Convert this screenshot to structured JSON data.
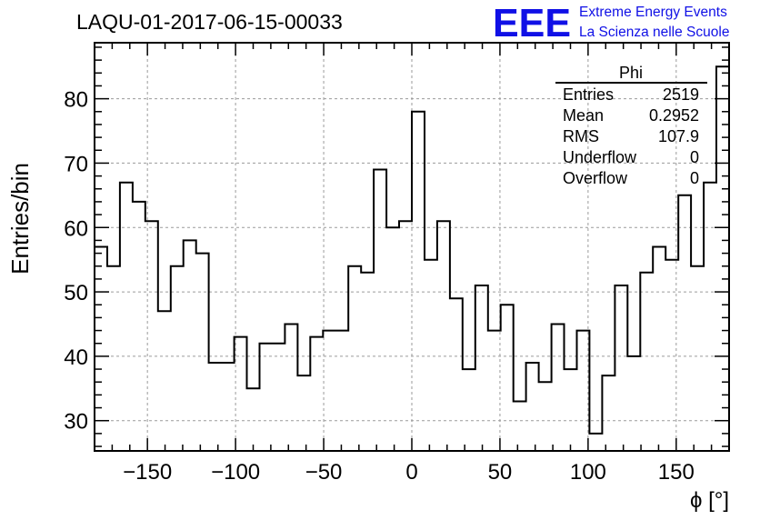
{
  "header": {
    "run_id": "LAQU-01-2017-06-15-00033",
    "logo_text": "EEE",
    "logo_line1": "Extreme Energy Events",
    "logo_line2": "La Scienza nelle Scuole"
  },
  "colors": {
    "logo": "#1010e6",
    "histogram": "#000000",
    "grid": "#9a9a9a"
  },
  "stats_box": {
    "title": "Phi",
    "rows": [
      {
        "label": "Entries",
        "value": "2519"
      },
      {
        "label": "Mean",
        "value": "0.2952"
      },
      {
        "label": "RMS",
        "value": "107.9"
      },
      {
        "label": "Underflow",
        "value": "0"
      },
      {
        "label": "Overflow",
        "value": "0"
      }
    ]
  },
  "chart_data": {
    "type": "histogram",
    "xlabel": "ϕ [°]",
    "ylabel": "Entries/bin",
    "xlim": [
      -180,
      180
    ],
    "ylim": [
      25.3,
      88.7
    ],
    "grid": true,
    "bin_width": 7.2,
    "x_ticks": [
      -150,
      -100,
      -50,
      0,
      50,
      100,
      150
    ],
    "x_tick_labels": [
      "−150",
      "−100",
      "−50",
      "0",
      "50",
      "100",
      "150"
    ],
    "y_ticks": [
      30,
      40,
      50,
      60,
      70,
      80
    ],
    "y_tick_labels": [
      "30",
      "40",
      "50",
      "60",
      "70",
      "80"
    ],
    "values": [
      57,
      54,
      67,
      64,
      61,
      47,
      54,
      58,
      56,
      39,
      39,
      43,
      35,
      42,
      42,
      45,
      37,
      43,
      44,
      44,
      54,
      53,
      69,
      60,
      61,
      78,
      55,
      61,
      49,
      38,
      51,
      44,
      48,
      33,
      39,
      36,
      45,
      38,
      44,
      28,
      37,
      51,
      40,
      53,
      57,
      55,
      65,
      54,
      67,
      85
    ]
  }
}
